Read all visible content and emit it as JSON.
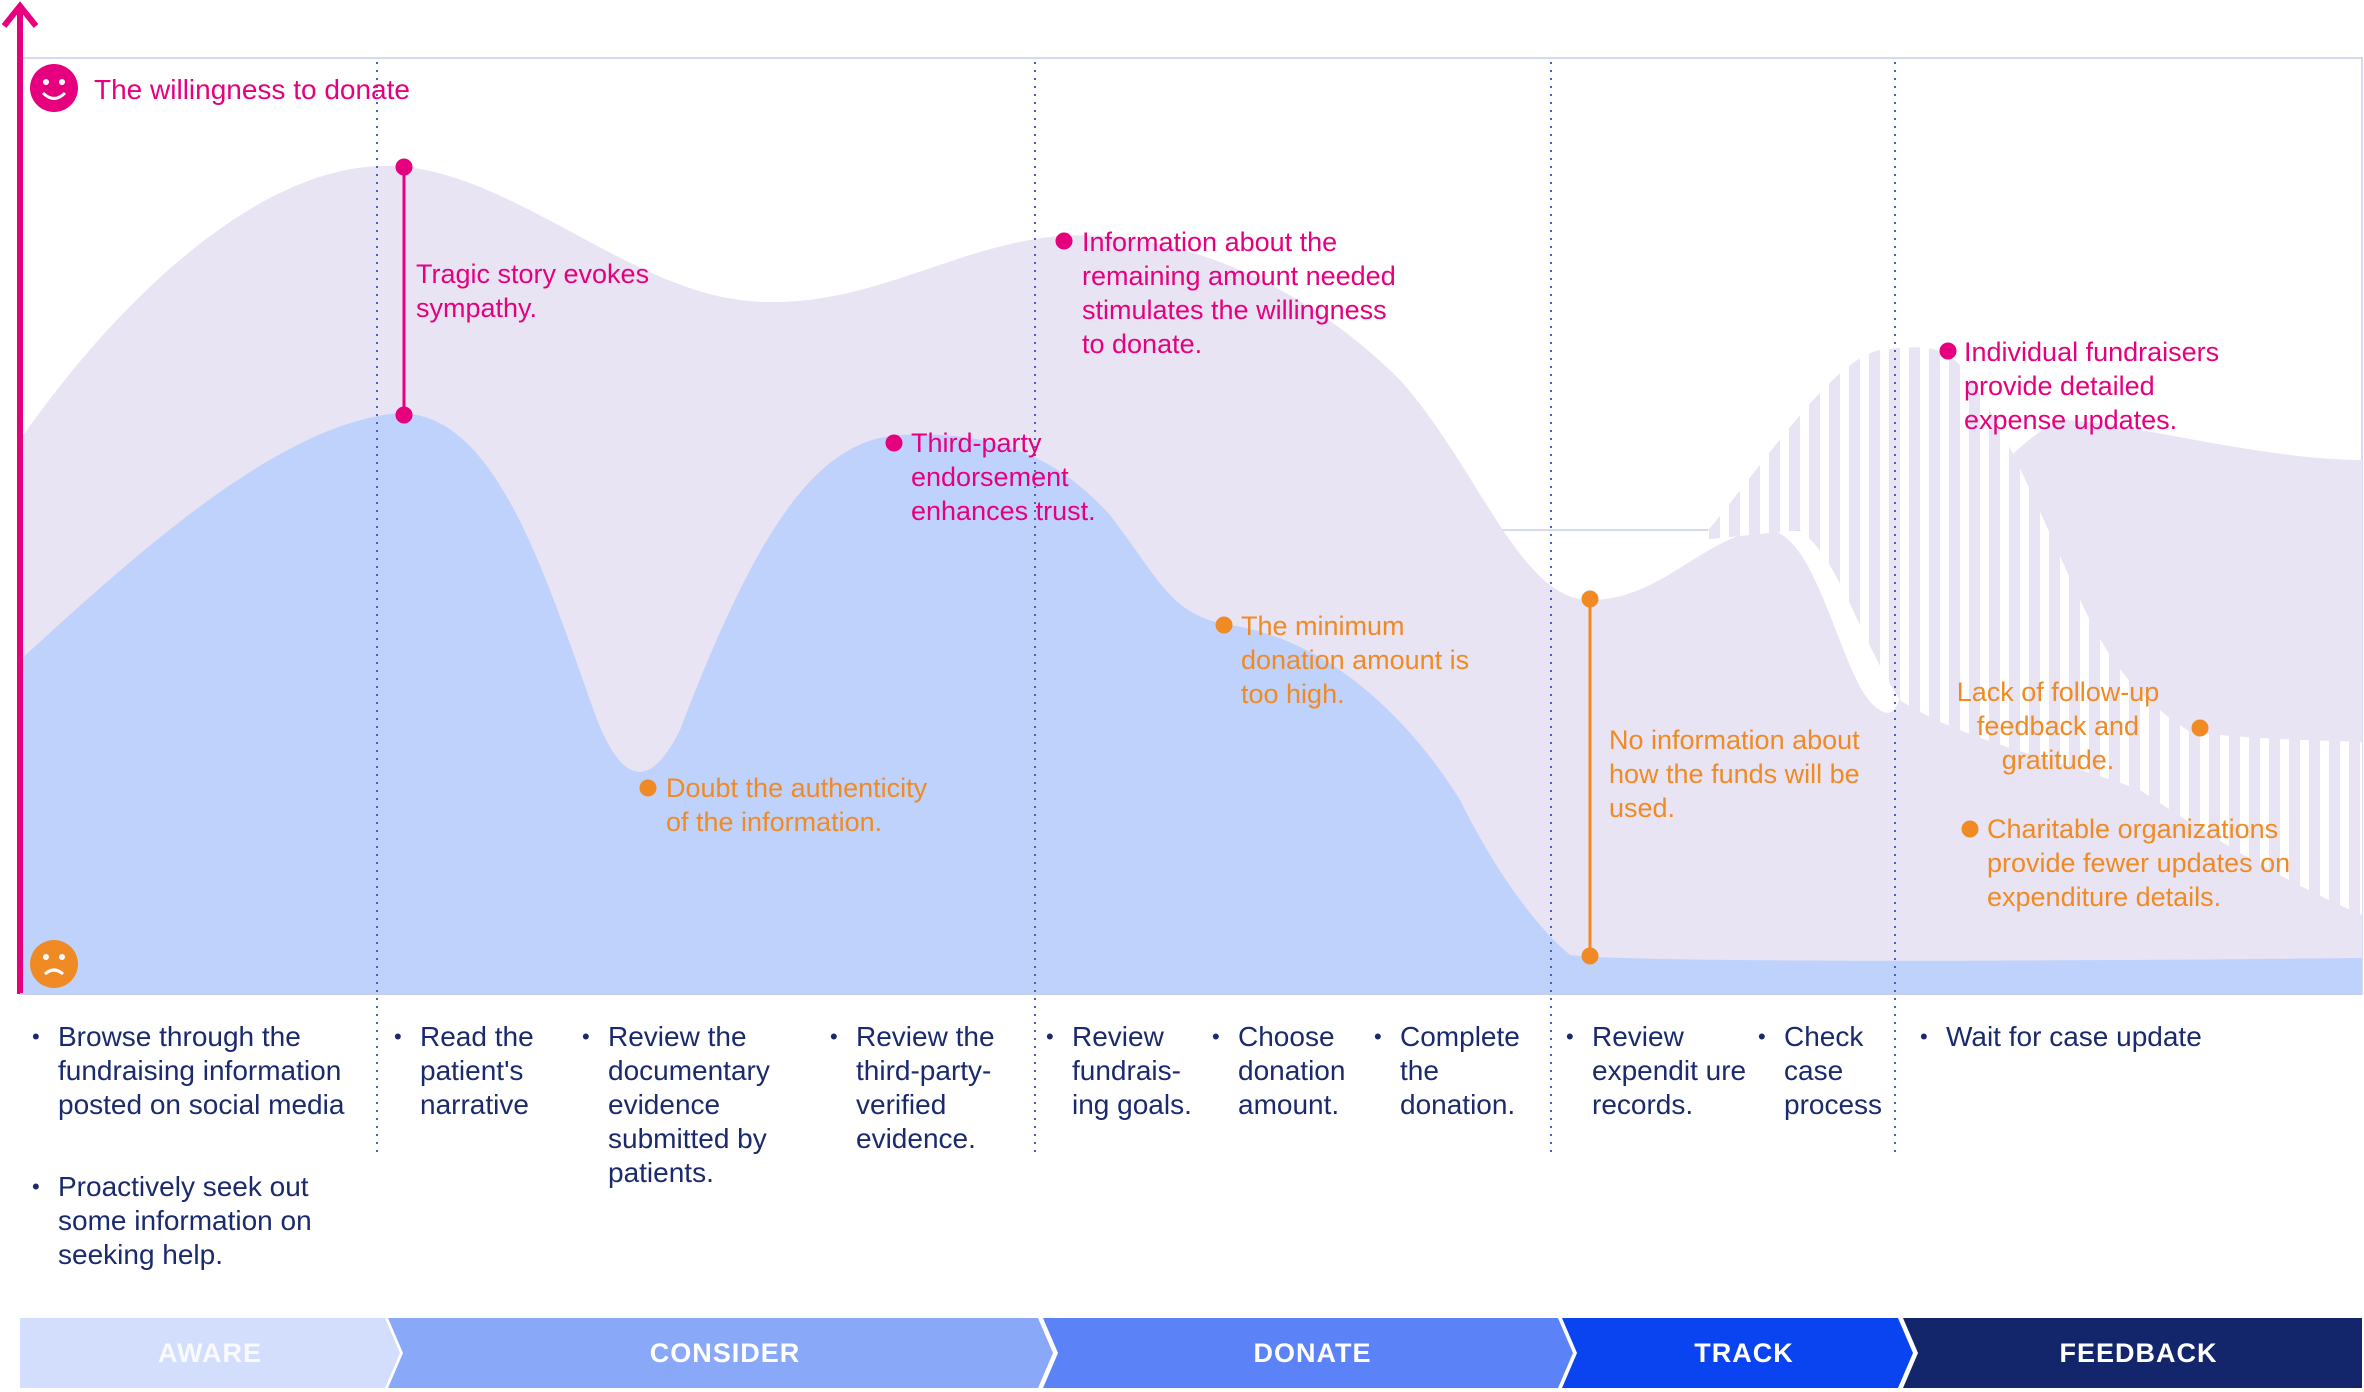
{
  "legend": {
    "label": "The willingness to donate"
  },
  "colors": {
    "axis": "#e6007e",
    "positive": "#e6007e",
    "negative": "#f08a24",
    "back_band": "#e8e4f3",
    "front_band": "#bfd2fb",
    "text": "#1a2a6c",
    "stage_aware": "#d3defc",
    "stage_consider": "#8aa8f8",
    "stage_donate": "#5b82f7",
    "stage_track": "#0a44f0",
    "stage_feedback": "#13256b"
  },
  "icons": {
    "top": "smile-icon",
    "bottom": "frown-icon"
  },
  "annotations": {
    "tragic": "Tragic story evokes sympathy.",
    "third_party": "Third-party endorsement enhances trust.",
    "remaining": "Information about the remaining amount needed stimulates the willingness to donate.",
    "individual": "Individual fundraisers provide detailed expense updates.",
    "doubt": "Doubt the authenticity of the information.",
    "minimum": "The minimum donation amount is too high.",
    "no_info": "No information about how the funds will be used.",
    "lack_followup": "Lack of follow-up feedback and gratitude.",
    "charitable": "Charitable organizations provide fewer updates on expenditure details."
  },
  "steps": {
    "browse": "Browse through the fundraising information posted on social media",
    "proactive": "Proactively seek out some information on seeking help.",
    "read": "Read the patient's narrative",
    "review_doc": "Review the documentary evidence submitted by patients.",
    "review_third": "Review the third-party-verified evidence.",
    "review_goals": "Review fundrais-ing goals.",
    "choose": "Choose donation amount.",
    "complete": "Complete the donation.",
    "review_exp": "Review expendit ure records.",
    "check": "Check case process",
    "wait": "Wait for case update"
  },
  "stages": [
    "AWARE",
    "CONSIDER",
    "DONATE",
    "TRACK",
    "FEEDBACK"
  ]
}
